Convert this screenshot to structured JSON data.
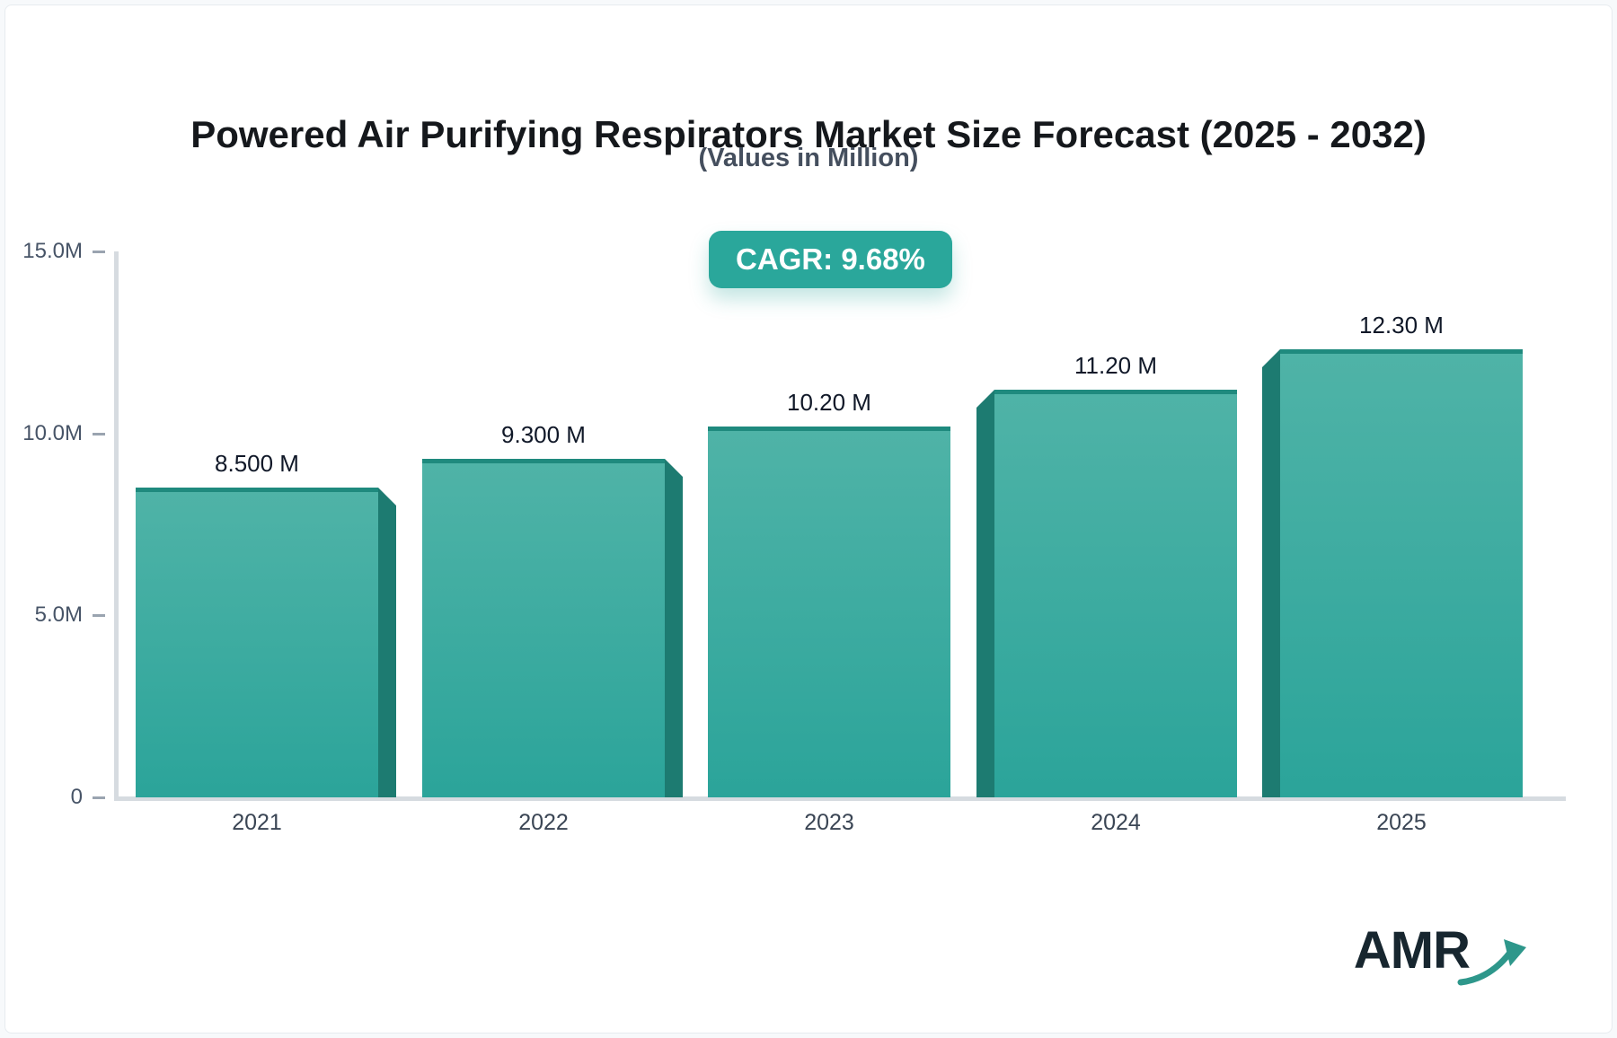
{
  "header": {
    "title": "Powered Air Purifying Respirators Market Size Forecast (2025 - 2032)",
    "subtitle": "(Values in Million)",
    "cagr_badge": "CAGR: 9.68%"
  },
  "colors": {
    "accent_teal": "#2AA79B",
    "bar_face_top": "#4FB3A7",
    "bar_face_bottom": "#2BA49A",
    "bar_top_edge": "#1F8A7E",
    "bar_side_face": "#1D7B71",
    "axis_line": "#D6DBE0",
    "tick": "#9AA4B0",
    "axis_label": "#475467",
    "year_label": "#3A4554",
    "value_label": "#101828",
    "title_text": "#15181C",
    "subtitle_text": "#454F5E",
    "logo_text": "#17262F",
    "logo_arrow": "#2E978B"
  },
  "chart_data": {
    "type": "bar",
    "title": "Powered Air Purifying Respirators Market Size Forecast (2025 - 2032)",
    "subtitle": "(Values in Million)",
    "annotation": "CAGR: 9.68%",
    "unit": "Million (M)",
    "categories": [
      "2021",
      "2022",
      "2023",
      "2024",
      "2025"
    ],
    "values": [
      8.5,
      9.3,
      10.2,
      11.2,
      12.3
    ],
    "value_labels": [
      "8.500 M",
      "9.300 M",
      "10.20 M",
      "11.20 M",
      "12.30 M"
    ],
    "ylim": [
      0,
      15
    ],
    "yticks": [
      {
        "value": 0,
        "label": "0"
      },
      {
        "value": 5,
        "label": "5.0M"
      },
      {
        "value": 10,
        "label": "10.0M"
      },
      {
        "value": 15,
        "label": "15.0M"
      }
    ],
    "grid": false,
    "legend": false,
    "style": "3d-perspective-bars",
    "xlabel": "",
    "ylabel": ""
  },
  "footer": {
    "logo_text": "AMR",
    "logo_arrow_icon": "trend-up-arrow-icon"
  }
}
